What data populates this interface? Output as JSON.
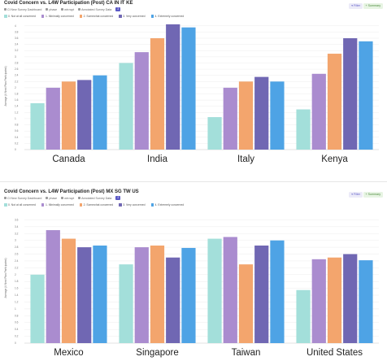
{
  "colors": {
    "not_at_all": "#a3dfda",
    "minimally": "#aa8ccf",
    "somewhat": "#f3a56d",
    "very": "#7067b3",
    "extremely": "#4ea3e5"
  },
  "panels": [
    {
      "title": "Covid Concern vs. L4W Participation (Post) CA IN IT KE",
      "meta": [
        "Cl New Survey Dashboard",
        "phase",
        "win:wpt",
        "Annotated Survey Data"
      ],
      "badge": "2",
      "filter_label": "Filter",
      "summary_label": "Summary"
    },
    {
      "title": "Covid Concern vs. L4W Participation (Post) MX SG TW US",
      "meta": [
        "Cl New Survey Dashboard",
        "phase",
        "win:wpt",
        "Annotated Survey Data"
      ],
      "badge": "2",
      "filter_label": "Filter",
      "summary_label": "Summary"
    }
  ],
  "chart_data": [
    {
      "type": "bar",
      "title": "Covid Concern vs. L4W Participation (Post) CA IN IT KE",
      "xlabel": "",
      "ylabel": "Average (# Next Plan Participated)",
      "categories": [
        "Canada",
        "India",
        "Italy",
        "Kenya"
      ],
      "ylim": [
        0,
        4.1
      ],
      "yticks": [
        "0",
        "0.2",
        "0.4",
        "0.6",
        "0.8",
        "1",
        "1.2",
        "1.4",
        "1.6",
        "1.8",
        "2",
        "2.2",
        "2.4",
        "2.6",
        "2.8",
        "3",
        "3.2",
        "3.4",
        "3.6",
        "3.8",
        "4"
      ],
      "grid": true,
      "legend_position": "top-left",
      "series": [
        {
          "name": "0. Not at all concerned",
          "values": [
            1.5,
            2.8,
            1.05,
            1.3
          ]
        },
        {
          "name": "1. Minimally concerned",
          "values": [
            2.0,
            3.15,
            2.0,
            2.45
          ]
        },
        {
          "name": "2. Somewhat concerned",
          "values": [
            2.2,
            3.6,
            2.2,
            3.1
          ]
        },
        {
          "name": "3. Very concerned",
          "values": [
            2.25,
            4.05,
            2.35,
            3.6
          ]
        },
        {
          "name": "4. Extremely concerned",
          "values": [
            2.4,
            3.95,
            2.2,
            3.5
          ]
        }
      ]
    },
    {
      "type": "bar",
      "title": "Covid Concern vs. L4W Participation (Post) MX SG TW US",
      "xlabel": "",
      "ylabel": "Average (# Next Plan Participated)",
      "categories": [
        "Mexico",
        "Singapore",
        "Taiwan",
        "United States"
      ],
      "ylim": [
        0,
        3.8
      ],
      "yticks": [
        "0",
        "0.2",
        "0.4",
        "0.6",
        "0.8",
        "1",
        "1.2",
        "1.4",
        "1.6",
        "1.8",
        "2",
        "2.2",
        "2.4",
        "2.6",
        "2.8",
        "3",
        "3.2",
        "3.4",
        "3.6"
      ],
      "grid": true,
      "legend_position": "top-left",
      "series": [
        {
          "name": "0. Not at all concerned",
          "values": [
            2.0,
            2.3,
            3.05,
            1.55
          ]
        },
        {
          "name": "1. Minimally concerned",
          "values": [
            3.3,
            2.8,
            3.1,
            2.45
          ]
        },
        {
          "name": "2. Somewhat concerned",
          "values": [
            3.05,
            2.85,
            2.3,
            2.5
          ]
        },
        {
          "name": "3. Very concerned",
          "values": [
            2.8,
            2.5,
            2.85,
            2.6
          ]
        },
        {
          "name": "4. Extremely concerned",
          "values": [
            2.85,
            2.78,
            3.0,
            2.42
          ]
        }
      ]
    }
  ]
}
